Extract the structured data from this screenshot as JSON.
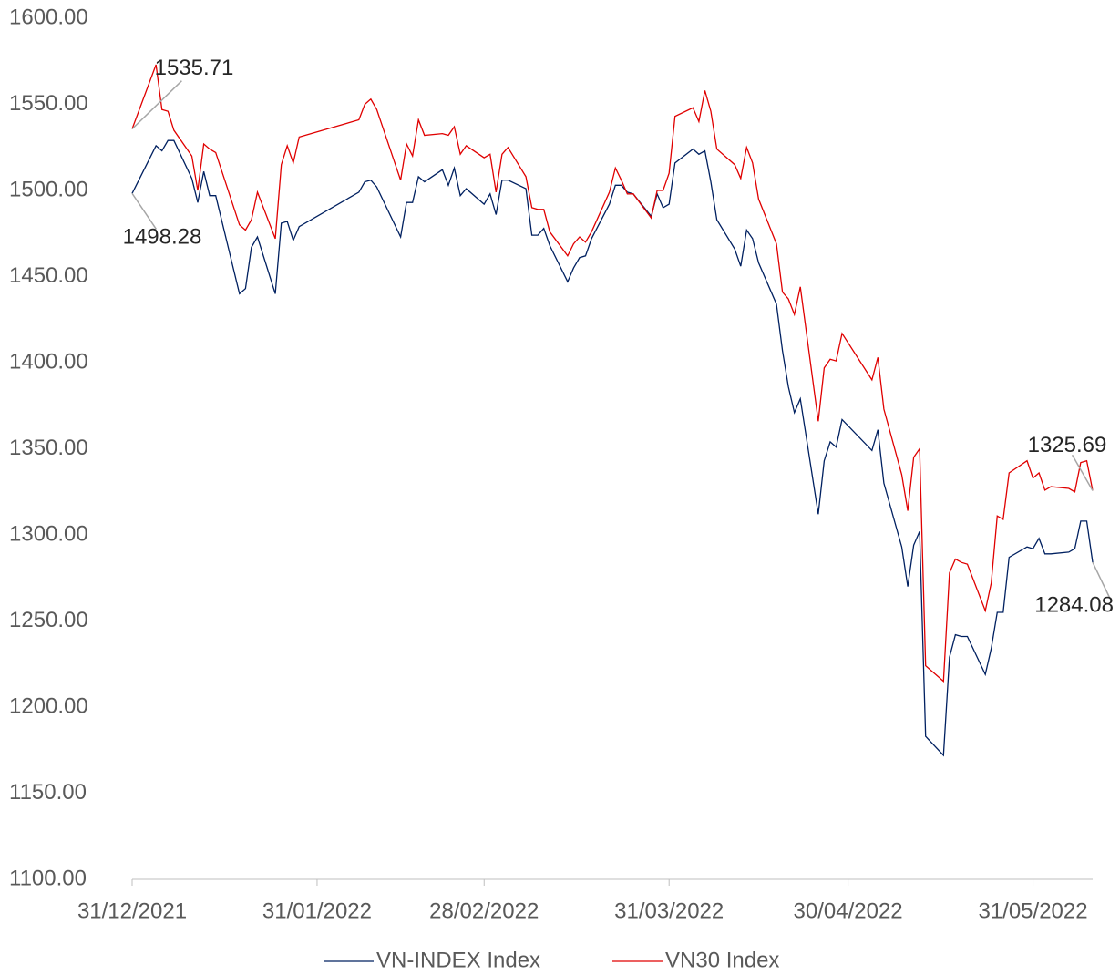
{
  "chart_data": {
    "type": "line",
    "x": [
      "31/12/2021",
      "04/01/2022",
      "05/01/2022",
      "06/01/2022",
      "07/01/2022",
      "10/01/2022",
      "11/01/2022",
      "12/01/2022",
      "13/01/2022",
      "14/01/2022",
      "18/01/2022",
      "19/01/2022",
      "20/01/2022",
      "21/01/2022",
      "24/01/2022",
      "25/01/2022",
      "26/01/2022",
      "27/01/2022",
      "28/01/2022",
      "07/02/2022",
      "08/02/2022",
      "09/02/2022",
      "10/02/2022",
      "14/02/2022",
      "15/02/2022",
      "16/02/2022",
      "17/02/2022",
      "18/02/2022",
      "21/02/2022",
      "22/02/2022",
      "23/02/2022",
      "24/02/2022",
      "25/02/2022",
      "28/02/2022",
      "01/03/2022",
      "02/03/2022",
      "03/03/2022",
      "04/03/2022",
      "07/03/2022",
      "08/03/2022",
      "09/03/2022",
      "10/03/2022",
      "11/03/2022",
      "14/03/2022",
      "15/03/2022",
      "16/03/2022",
      "17/03/2022",
      "18/03/2022",
      "21/03/2022",
      "22/03/2022",
      "23/03/2022",
      "24/03/2022",
      "25/03/2022",
      "28/03/2022",
      "29/03/2022",
      "30/03/2022",
      "31/03/2022",
      "01/04/2022",
      "04/04/2022",
      "05/04/2022",
      "06/04/2022",
      "07/04/2022",
      "08/04/2022",
      "11/04/2022",
      "12/04/2022",
      "13/04/2022",
      "14/04/2022",
      "15/04/2022",
      "18/04/2022",
      "19/04/2022",
      "20/04/2022",
      "21/04/2022",
      "22/04/2022",
      "25/04/2022",
      "26/04/2022",
      "27/04/2022",
      "28/04/2022",
      "29/04/2022",
      "04/05/2022",
      "05/05/2022",
      "06/05/2022",
      "09/05/2022",
      "10/05/2022",
      "11/05/2022",
      "12/05/2022",
      "13/05/2022",
      "16/05/2022",
      "17/05/2022",
      "18/05/2022",
      "19/05/2022",
      "20/05/2022",
      "23/05/2022",
      "24/05/2022",
      "25/05/2022",
      "26/05/2022",
      "27/05/2022",
      "30/05/2022",
      "31/05/2022",
      "01/06/2022",
      "02/06/2022",
      "03/06/2022",
      "06/06/2022",
      "07/06/2022",
      "08/06/2022",
      "09/06/2022",
      "10/06/2022"
    ],
    "series": [
      {
        "name": "VN-INDEX Index",
        "color": "#002060",
        "values": [
          1498.28,
          1526,
          1523,
          1529,
          1529,
          1507,
          1493,
          1511,
          1497,
          1497,
          1440,
          1443,
          1467,
          1473,
          1440,
          1481,
          1482,
          1471,
          1479,
          1499,
          1505,
          1506,
          1502,
          1473,
          1493,
          1493,
          1508,
          1505,
          1512,
          1503,
          1513,
          1497,
          1501,
          1492,
          1498,
          1486,
          1506,
          1506,
          1501,
          1474,
          1474,
          1478,
          1468,
          1447,
          1455,
          1461,
          1462,
          1472,
          1492,
          1503,
          1503,
          1499,
          1498,
          1485,
          1498,
          1490,
          1492,
          1516,
          1524,
          1521,
          1523,
          1505,
          1483,
          1466,
          1456,
          1477,
          1472,
          1458,
          1434,
          1407,
          1386,
          1371,
          1379,
          1312,
          1343,
          1354,
          1351,
          1367,
          1349,
          1361,
          1330,
          1293,
          1270,
          1294,
          1302,
          1183,
          1172,
          1229,
          1242,
          1241,
          1241,
          1219,
          1234,
          1255,
          1255,
          1287,
          1293,
          1292,
          1298,
          1289,
          1289,
          1290,
          1292,
          1308,
          1308,
          1284.08
        ]
      },
      {
        "name": "VN30 Index",
        "color": "#e00000",
        "values": [
          1535.71,
          1573,
          1547,
          1546,
          1535,
          1520,
          1500,
          1527,
          1524,
          1522,
          1480,
          1477,
          1483,
          1499,
          1472,
          1515,
          1526,
          1516,
          1531,
          1541,
          1550,
          1553,
          1547,
          1506,
          1527,
          1520,
          1541,
          1532,
          1533,
          1532,
          1537,
          1521,
          1526,
          1519,
          1521,
          1499,
          1521,
          1525,
          1508,
          1490,
          1489,
          1489,
          1476,
          1462,
          1469,
          1473,
          1470,
          1476,
          1499,
          1513,
          1506,
          1498,
          1498,
          1484,
          1500,
          1500,
          1510,
          1543,
          1548,
          1540,
          1558,
          1546,
          1524,
          1515,
          1507,
          1525,
          1516,
          1495,
          1469,
          1441,
          1437,
          1428,
          1444,
          1366,
          1397,
          1402,
          1401,
          1417,
          1390,
          1403,
          1373,
          1335,
          1314,
          1345,
          1350,
          1224,
          1215,
          1278,
          1286,
          1284,
          1283,
          1256,
          1272,
          1311,
          1309,
          1336,
          1343,
          1333,
          1336,
          1326,
          1328,
          1327,
          1325,
          1342,
          1343,
          1325.69
        ]
      }
    ],
    "xlim": [
      "31/12/2021",
      "10/06/2022"
    ],
    "xticks": [
      "31/12/2021",
      "31/01/2022",
      "28/02/2022",
      "31/03/2022",
      "30/04/2022",
      "31/05/2022"
    ],
    "ylim": [
      1100,
      1600
    ],
    "yticks": [
      {
        "value": 1100,
        "label": "1100.00"
      },
      {
        "value": 1150,
        "label": "1150.00"
      },
      {
        "value": 1200,
        "label": "1200.00"
      },
      {
        "value": 1250,
        "label": "1250.00"
      },
      {
        "value": 1300,
        "label": "1300.00"
      },
      {
        "value": 1350,
        "label": "1350.00"
      },
      {
        "value": 1400,
        "label": "1400.00"
      },
      {
        "value": 1450,
        "label": "1450.00"
      },
      {
        "value": 1500,
        "label": "1500.00"
      },
      {
        "value": 1550,
        "label": "1550.00"
      },
      {
        "value": 1600,
        "label": "1600.00"
      }
    ],
    "grid": false,
    "legend": "bottom"
  }
}
